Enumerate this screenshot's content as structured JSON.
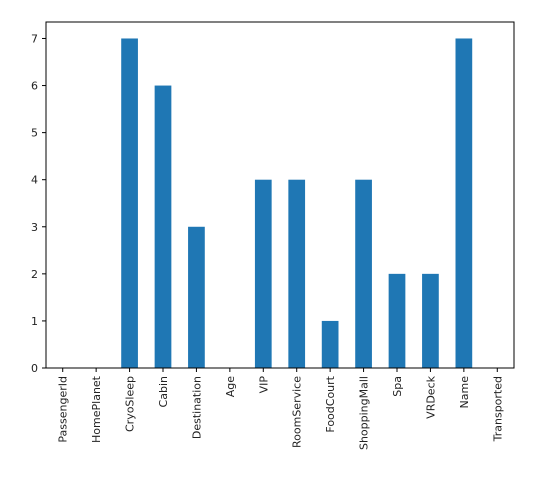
{
  "chart_data": {
    "type": "bar",
    "categories": [
      "PassengerId",
      "HomePlanet",
      "CryoSleep",
      "Cabin",
      "Destination",
      "Age",
      "VIP",
      "RoomService",
      "FoodCourt",
      "ShoppingMall",
      "Spa",
      "VRDeck",
      "Name",
      "Transported"
    ],
    "values": [
      0,
      0,
      7,
      6,
      3,
      0,
      4,
      4,
      1,
      4,
      2,
      2,
      7,
      0
    ],
    "title": "",
    "xlabel": "",
    "ylabel": "",
    "ylim": [
      0,
      7.35
    ],
    "yticks": [
      0,
      1,
      2,
      3,
      4,
      5,
      6,
      7
    ],
    "grid": false,
    "bar_color": "#1f77b4"
  }
}
